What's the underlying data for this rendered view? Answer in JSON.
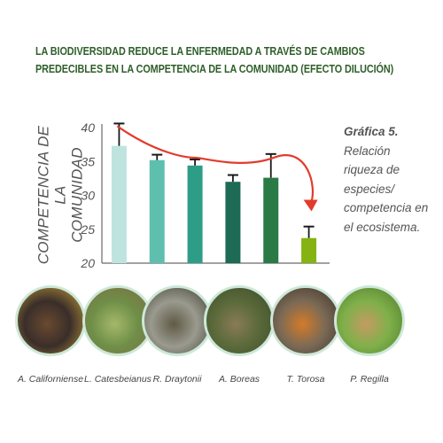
{
  "title_lines": [
    "LA BIODIVERSIDAD REDUCE LA ENFERMEDAD A TRAVÉS DE CAMBIOS",
    "PREDECIBLES EN LA COMPETENCIA DE LA COMUNIDAD (EFECTO DILUCIÓN)"
  ],
  "caption": {
    "title": "Gráfica 5.",
    "lines": [
      "Relación",
      "riqueza de",
      "especies/",
      "competencia en",
      "el ecosistema."
    ]
  },
  "chart_data": {
    "type": "bar",
    "ylabel_lines": [
      "COMPETENCIA DE LA",
      "COMUNIDAD"
    ],
    "ylim": [
      20,
      40
    ],
    "yticks": [
      20,
      25,
      30,
      35,
      40
    ],
    "categories": [
      "A. Californiense",
      "L. Catesbeianus",
      "R. Draytonii",
      "A. Boreas",
      "T. Torosa",
      "P. Regilla"
    ],
    "values": [
      37.3,
      35.2,
      34.4,
      32.0,
      32.6,
      23.7
    ],
    "errors": [
      3.3,
      0.8,
      0.9,
      1.0,
      3.5,
      1.7
    ],
    "bar_colors": [
      "#bfe4e0",
      "#5fbfae",
      "#2e9d87",
      "#1d6a55",
      "#2a7a45",
      "#84b312"
    ],
    "trend_color": "#e23b2c",
    "grid": false
  },
  "photos": [
    {
      "name": "A. Californiense",
      "colors": [
        "#3a2e2a",
        "#6a4a2f",
        "#c9a13a"
      ]
    },
    {
      "name": "L. Catesbeianus",
      "colors": [
        "#6f8f48",
        "#a5b86a",
        "#7d6b43"
      ]
    },
    {
      "name": "R. Draytonii",
      "colors": [
        "#9a9a8f",
        "#5f5a45",
        "#3b3a2a"
      ]
    },
    {
      "name": "A. Boreas",
      "colors": [
        "#5a6a3a",
        "#8a7a55",
        "#3f4a2a"
      ]
    },
    {
      "name": "T. Torosa",
      "colors": [
        "#7b6a55",
        "#d47a2a",
        "#3a2f2a"
      ]
    },
    {
      "name": "P. Regilla",
      "colors": [
        "#7fb04a",
        "#c49b62",
        "#4e7a2a"
      ]
    }
  ]
}
